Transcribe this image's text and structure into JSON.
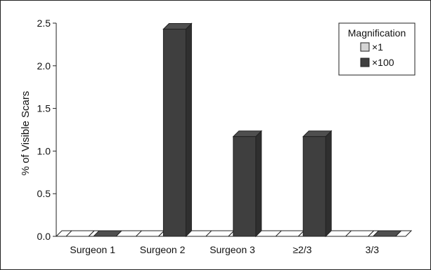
{
  "chart_data": {
    "type": "bar",
    "title": "",
    "xlabel": "",
    "ylabel": "% of Visible Scars",
    "categories": [
      "Surgeon 1",
      "Surgeon 2",
      "Surgeon 3",
      "≥2/3",
      "3/3"
    ],
    "series": [
      {
        "name": "×1",
        "values": [
          0.0,
          0.0,
          0.0,
          0.0,
          0.0
        ],
        "color": "#d4d4d4"
      },
      {
        "name": "×100",
        "values": [
          0.0,
          2.43,
          1.17,
          1.17,
          0.0
        ],
        "color": "#3f3f3f"
      }
    ],
    "ylim": [
      0,
      2.5
    ],
    "yticks": [
      "0.0",
      "0.5",
      "1.0",
      "1.5",
      "2.0",
      "2.5"
    ],
    "grid": false,
    "legend": {
      "title": "Magnification",
      "placement": "top-right"
    },
    "style": "3d-bars"
  }
}
